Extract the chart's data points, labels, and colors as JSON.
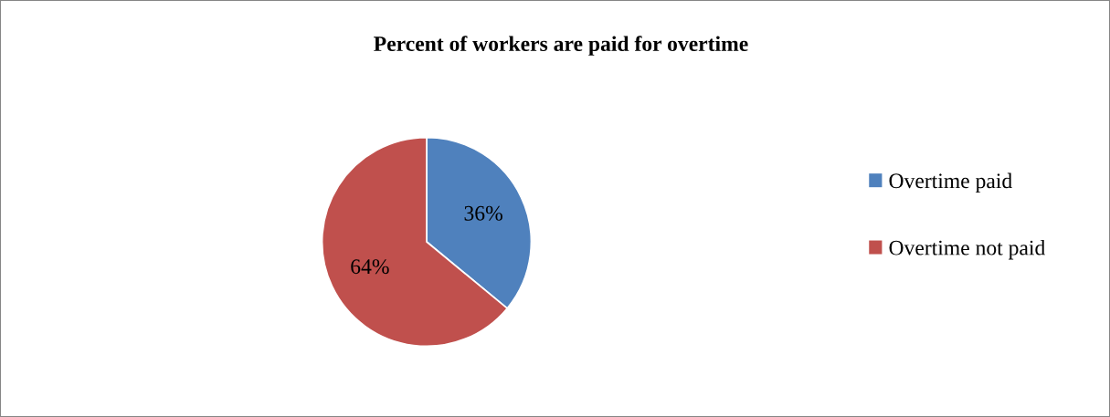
{
  "chart_data": {
    "type": "pie",
    "title": "Percent of workers are paid for overtime",
    "categories": [
      "Overtime paid",
      "Overtime not paid"
    ],
    "values": [
      36,
      64
    ],
    "colors": [
      "#4f81bd",
      "#c0504d"
    ],
    "value_labels": [
      "36%",
      "64%"
    ],
    "legend": "right"
  }
}
